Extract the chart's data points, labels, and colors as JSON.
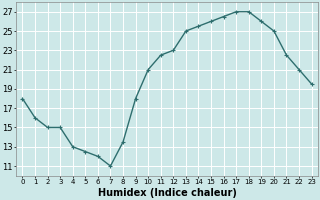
{
  "x": [
    0,
    1,
    2,
    3,
    4,
    5,
    6,
    7,
    8,
    9,
    10,
    11,
    12,
    13,
    14,
    15,
    16,
    17,
    18,
    19,
    20,
    21,
    22,
    23
  ],
  "y": [
    18,
    16,
    15,
    15,
    13,
    12.5,
    12,
    11,
    13.5,
    18,
    21,
    22.5,
    23,
    25,
    25.5,
    26,
    26.5,
    27,
    27,
    26,
    25,
    22.5,
    21,
    19.5
  ],
  "line_color": "#2e6e6e",
  "marker": "+",
  "marker_size": 3,
  "linewidth": 1.0,
  "bg_color": "#cde8e8",
  "grid_color": "#ffffff",
  "xlabel": "Humidex (Indice chaleur)",
  "xlabel_fontsize": 7,
  "ylabel_ticks": [
    11,
    13,
    15,
    17,
    19,
    21,
    23,
    25,
    27
  ],
  "ylim": [
    10.0,
    28.0
  ],
  "xlim": [
    -0.5,
    23.5
  ],
  "xtick_labels": [
    "0",
    "1",
    "2",
    "3",
    "4",
    "5",
    "6",
    "7",
    "8",
    "9",
    "10",
    "11",
    "12",
    "13",
    "14",
    "15",
    "16",
    "17",
    "18",
    "19",
    "20",
    "21",
    "22",
    "23"
  ],
  "tick_fontsize": 6,
  "title": ""
}
